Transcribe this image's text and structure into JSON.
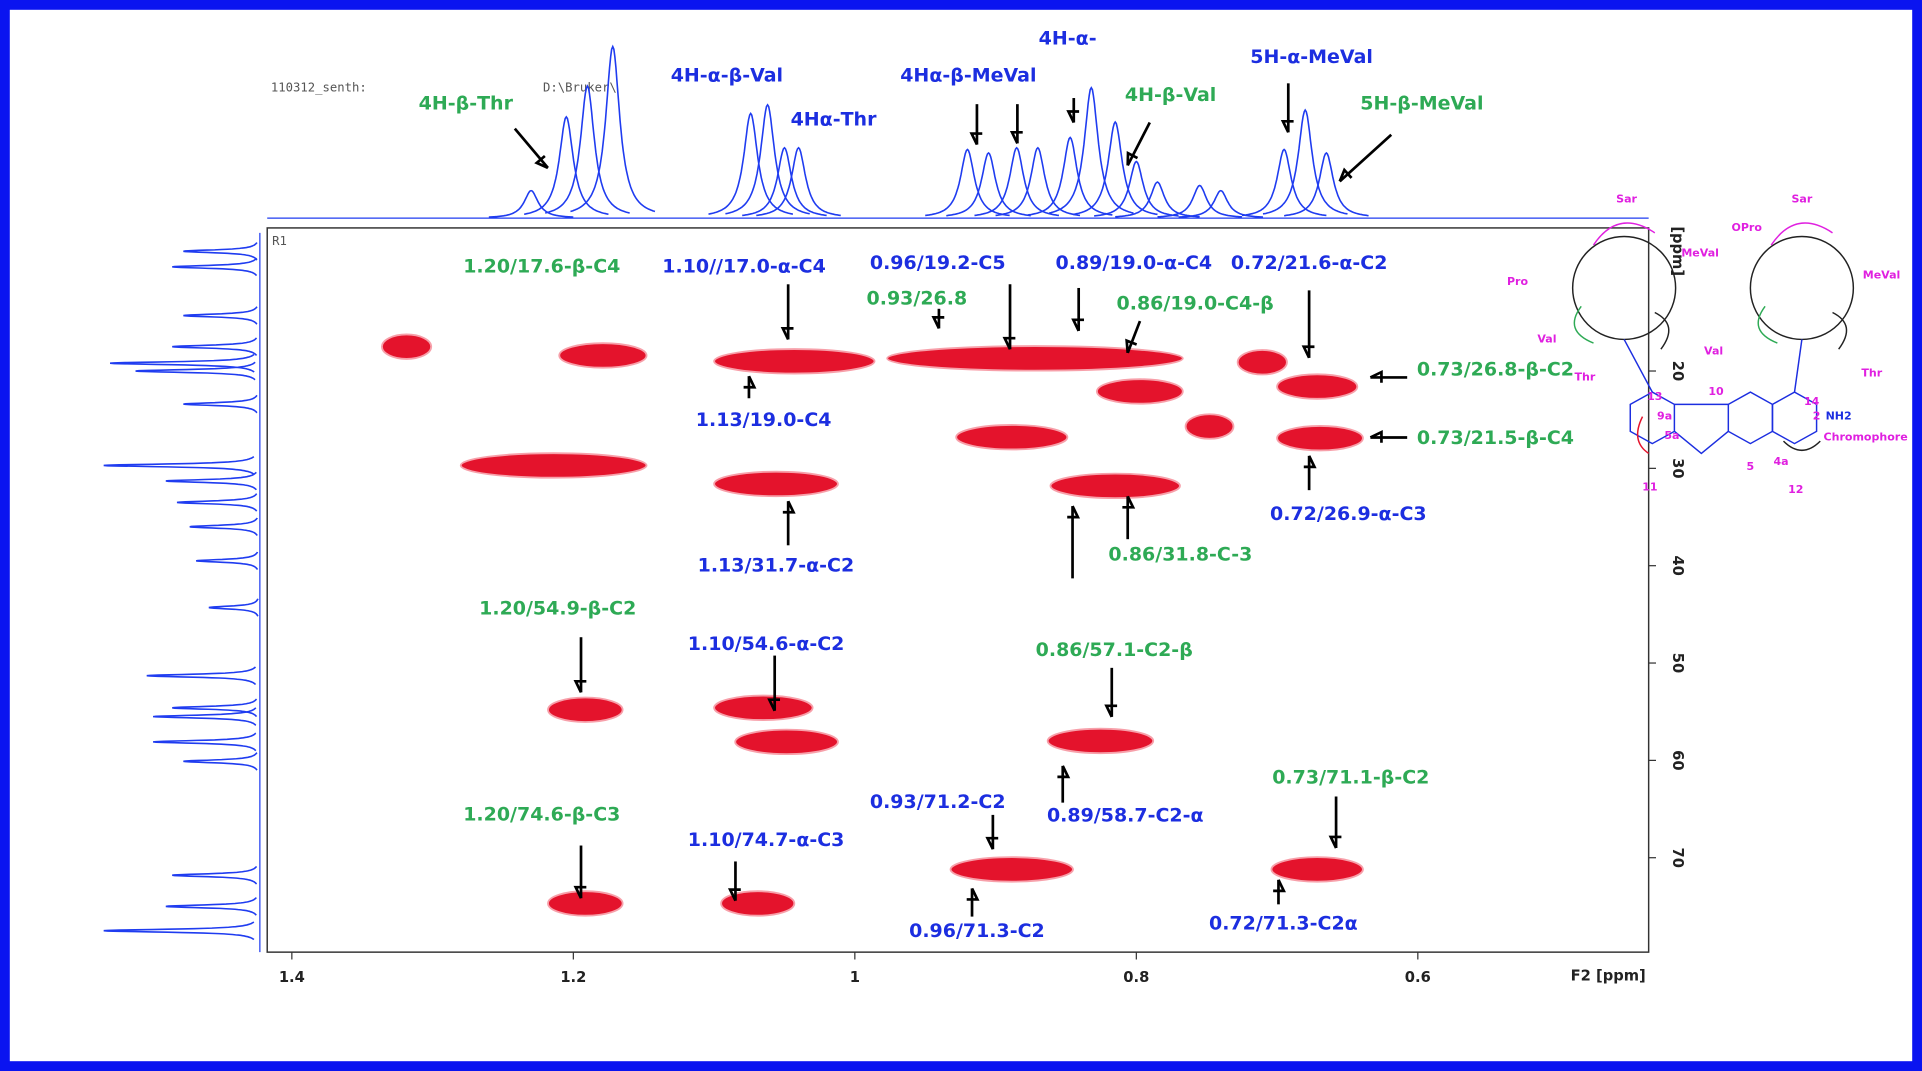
{
  "chart_data": {
    "type": "nmr2d",
    "header_texts": [
      "110312_senth:",
      "D:\\Bruker\\"
    ],
    "plot_label": "R1",
    "xlabel": "F2 [ppm]",
    "ylabel": "[ppm]",
    "xlim": [
      1.4175,
      0.436
    ],
    "ylim": [
      5.3,
      79.7
    ],
    "xticks": [
      1.4,
      1.2,
      1.0,
      0.8,
      0.6
    ],
    "yticks": [
      20,
      30,
      40,
      50,
      60,
      70
    ],
    "peak_color": "#e4132c",
    "projection_color": "#1f3cf0",
    "green": "#2eaa55",
    "blue": "#1c2ee0",
    "peaks": [
      {
        "x1": 1.336,
        "x2": 1.301,
        "y": 17.5
      },
      {
        "x1": 1.21,
        "x2": 1.148,
        "y": 18.4
      },
      {
        "x1": 1.1,
        "x2": 0.986,
        "y": 19.0
      },
      {
        "x1": 0.977,
        "x2": 0.767,
        "y": 18.7
      },
      {
        "x1": 0.828,
        "x2": 0.767,
        "y": 22.1
      },
      {
        "x1": 0.728,
        "x2": 0.693,
        "y": 19.1
      },
      {
        "x1": 0.7,
        "x2": 0.643,
        "y": 21.6
      },
      {
        "x1": 0.7,
        "x2": 0.639,
        "y": 26.9
      },
      {
        "x1": 0.928,
        "x2": 0.849,
        "y": 26.8
      },
      {
        "x1": 0.765,
        "x2": 0.731,
        "y": 25.7
      },
      {
        "x1": 1.28,
        "x2": 1.148,
        "y": 29.7
      },
      {
        "x1": 1.1,
        "x2": 1.012,
        "y": 31.6
      },
      {
        "x1": 0.861,
        "x2": 0.769,
        "y": 31.8
      },
      {
        "x1": 1.218,
        "x2": 1.165,
        "y": 54.8
      },
      {
        "x1": 1.1,
        "x2": 1.03,
        "y": 54.6
      },
      {
        "x1": 1.085,
        "x2": 1.012,
        "y": 58.1
      },
      {
        "x1": 0.863,
        "x2": 0.788,
        "y": 58.0
      },
      {
        "x1": 0.932,
        "x2": 0.845,
        "y": 71.2
      },
      {
        "x1": 0.704,
        "x2": 0.639,
        "y": 71.2
      },
      {
        "x1": 1.218,
        "x2": 1.165,
        "y": 74.7
      },
      {
        "x1": 1.095,
        "x2": 1.043,
        "y": 74.7
      }
    ],
    "f2_projection": {
      "x": [
        1.23,
        1.205,
        1.19,
        1.172,
        1.074,
        1.062,
        1.05,
        1.04,
        0.92,
        0.905,
        0.885,
        0.87,
        0.847,
        0.832,
        0.815,
        0.8,
        0.785,
        0.755,
        0.74,
        0.695,
        0.68,
        0.665
      ],
      "intensity": [
        16,
        59,
        77,
        100,
        61,
        66,
        41,
        41,
        40,
        38,
        41,
        41,
        47,
        76,
        56,
        33,
        21,
        19,
        16,
        40,
        63,
        38
      ]
    },
    "f1_projection": {
      "y": [
        7.7,
        9.3,
        14.3,
        17.5,
        19.2,
        20.0,
        23.4,
        29.7,
        31.3,
        33.5,
        36.0,
        39.5,
        44.3,
        51.3,
        54.6,
        55.5,
        58.1,
        60.1,
        71.8,
        75.0,
        77.5
      ],
      "intensity": [
        48,
        55,
        48,
        55,
        94,
        78,
        48,
        98,
        59,
        52,
        44,
        40,
        32,
        71,
        55,
        67,
        67,
        48,
        55,
        59,
        98
      ]
    },
    "annotations": [
      {
        "text": "4H-β-Thr",
        "color": "green"
      },
      {
        "text": "4H-α-β-Val",
        "color": "blue"
      },
      {
        "text": "4Hα-Thr",
        "color": "blue"
      },
      {
        "text": "4Hα-β-MeVal",
        "color": "blue"
      },
      {
        "text": "4H-α-",
        "color": "blue"
      },
      {
        "text": "4H-β-Val",
        "color": "green"
      },
      {
        "text": "5H-α-MeVal",
        "color": "blue"
      },
      {
        "text": "5H-β-MeVal",
        "color": "green"
      },
      {
        "text": "1.20/17.6-β-C4",
        "color": "green"
      },
      {
        "text": "1.10//17.0-α-C4",
        "color": "blue"
      },
      {
        "text": "0.96/19.2-C5",
        "color": "blue"
      },
      {
        "text": "0.89/19.0-α-C4",
        "color": "blue"
      },
      {
        "text": "0.72/21.6-α-C2",
        "color": "blue"
      },
      {
        "text": "0.93/26.8",
        "color": "green"
      },
      {
        "text": "0.86/19.0-C4-β",
        "color": "green"
      },
      {
        "text": "0.73/26.8-β-C2",
        "color": "green"
      },
      {
        "text": "0.73/21.5-β-C4",
        "color": "green"
      },
      {
        "text": "1.13/19.0-C4",
        "color": "blue"
      },
      {
        "text": "0.72/26.9-α-C3",
        "color": "blue"
      },
      {
        "text": "1.13/31.7-α-C2",
        "color": "blue"
      },
      {
        "text": "0.86/31.8-C-3",
        "color": "green"
      },
      {
        "text": "1.20/54.9-β-C2",
        "color": "green"
      },
      {
        "text": "1.10/54.6-α-C2",
        "color": "blue"
      },
      {
        "text": "0.86/57.1-C2-β",
        "color": "green"
      },
      {
        "text": "0.93/71.2-C2",
        "color": "blue"
      },
      {
        "text": "0.73/71.1-β-C2",
        "color": "green"
      },
      {
        "text": "0.89/58.7-C2-α",
        "color": "blue"
      },
      {
        "text": "1.20/74.6-β-C3",
        "color": "green"
      },
      {
        "text": "1.10/74.7-α-C3",
        "color": "blue"
      },
      {
        "text": "0.96/71.3-C2",
        "color": "blue"
      },
      {
        "text": "0.72/71.3-C2α",
        "color": "blue"
      }
    ],
    "structure_labels": [
      "Sar",
      "Sar",
      "MeVal",
      "MeVal",
      "OPro",
      "Pro",
      "Val",
      "Val",
      "Thr",
      "Thr",
      "Chromophore",
      "NH2",
      "10",
      "14",
      "2",
      "9a",
      "5a",
      "4a",
      "5",
      "12",
      "13",
      "11"
    ]
  }
}
